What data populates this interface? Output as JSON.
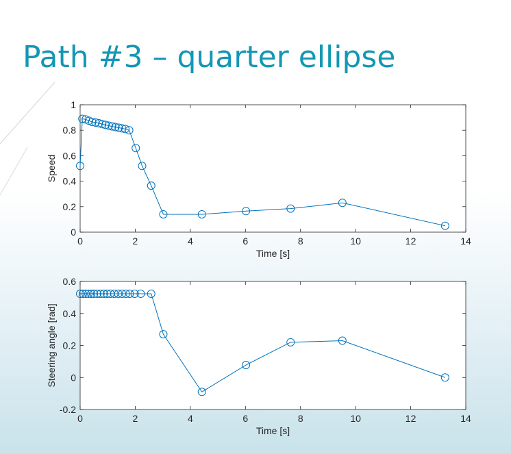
{
  "slide": {
    "title": "Path #3 – quarter ellipse"
  },
  "colors": {
    "title": "#1497b4",
    "series": "#0072bd",
    "axis": "#262626"
  },
  "chart_data": [
    {
      "type": "line",
      "marker": "circle",
      "xlabel": "Time [s]",
      "ylabel": "Speed",
      "xlim": [
        0,
        14
      ],
      "ylim": [
        0,
        1
      ],
      "xticks": [
        "0",
        "2",
        "4",
        "6",
        "8",
        "10",
        "12",
        "14"
      ],
      "yticks": [
        "0",
        "0.2",
        "0.4",
        "0.6",
        "0.8",
        "1"
      ],
      "grid": false,
      "series": [
        {
          "x": [
            0,
            0.08,
            0.2,
            0.32,
            0.44,
            0.56,
            0.68,
            0.8,
            0.92,
            1.04,
            1.16,
            1.28,
            1.4,
            1.52,
            1.64,
            1.78,
            2.02,
            2.25,
            2.58,
            3.02,
            4.42,
            6.02,
            7.64,
            9.52,
            13.25
          ],
          "y": [
            0.52,
            0.89,
            0.885,
            0.875,
            0.865,
            0.86,
            0.855,
            0.848,
            0.842,
            0.836,
            0.83,
            0.825,
            0.82,
            0.815,
            0.81,
            0.8,
            0.66,
            0.52,
            0.365,
            0.14,
            0.14,
            0.165,
            0.185,
            0.23,
            0.05
          ]
        }
      ]
    },
    {
      "type": "line",
      "marker": "circle",
      "xlabel": "Time [s]",
      "ylabel": "Steering angle [rad]",
      "xlim": [
        0,
        14
      ],
      "ylim": [
        -0.2,
        0.6
      ],
      "xticks": [
        "0",
        "2",
        "4",
        "6",
        "8",
        "10",
        "12",
        "14"
      ],
      "yticks": [
        "-0.2",
        "0",
        "0.2",
        "0.4",
        "0.6"
      ],
      "grid": false,
      "series": [
        {
          "x": [
            0,
            0.1,
            0.2,
            0.3,
            0.4,
            0.5,
            0.62,
            0.74,
            0.86,
            0.98,
            1.1,
            1.24,
            1.38,
            1.52,
            1.66,
            1.8,
            1.98,
            2.2,
            2.58,
            3.02,
            4.42,
            6.02,
            7.64,
            9.52,
            13.25
          ],
          "y": [
            0.523,
            0.523,
            0.523,
            0.523,
            0.523,
            0.523,
            0.523,
            0.523,
            0.523,
            0.523,
            0.523,
            0.523,
            0.523,
            0.523,
            0.523,
            0.523,
            0.523,
            0.523,
            0.523,
            0.27,
            -0.09,
            0.078,
            0.22,
            0.23,
            0.0
          ]
        }
      ]
    }
  ]
}
